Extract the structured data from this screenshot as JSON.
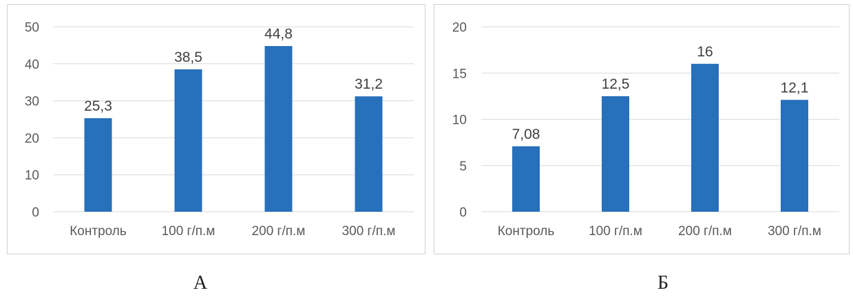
{
  "chart_data": [
    {
      "type": "bar",
      "caption": "А",
      "categories": [
        "Контроль",
        "100 г/п.м",
        "200 г/п.м",
        "300 г/п.м"
      ],
      "values": [
        25.3,
        38.5,
        44.8,
        31.2
      ],
      "value_labels": [
        "25,3",
        "38,5",
        "44,8",
        "31,2"
      ],
      "yticks": [
        0,
        10,
        20,
        30,
        40,
        50
      ],
      "ylim": [
        0,
        50
      ],
      "grid": true,
      "bar_color": "#2770BB",
      "title": "",
      "xlabel": "",
      "ylabel": ""
    },
    {
      "type": "bar",
      "caption": "Б",
      "categories": [
        "Контроль",
        "100 г/п.м",
        "200 г/п.м",
        "300 г/п.м"
      ],
      "values": [
        7.08,
        12.5,
        16,
        12.1
      ],
      "value_labels": [
        "7,08",
        "12,5",
        "16",
        "12,1"
      ],
      "yticks": [
        0,
        5,
        10,
        15,
        20
      ],
      "ylim": [
        0,
        20
      ],
      "grid": true,
      "bar_color": "#2770BB",
      "title": "",
      "xlabel": "",
      "ylabel": ""
    }
  ]
}
